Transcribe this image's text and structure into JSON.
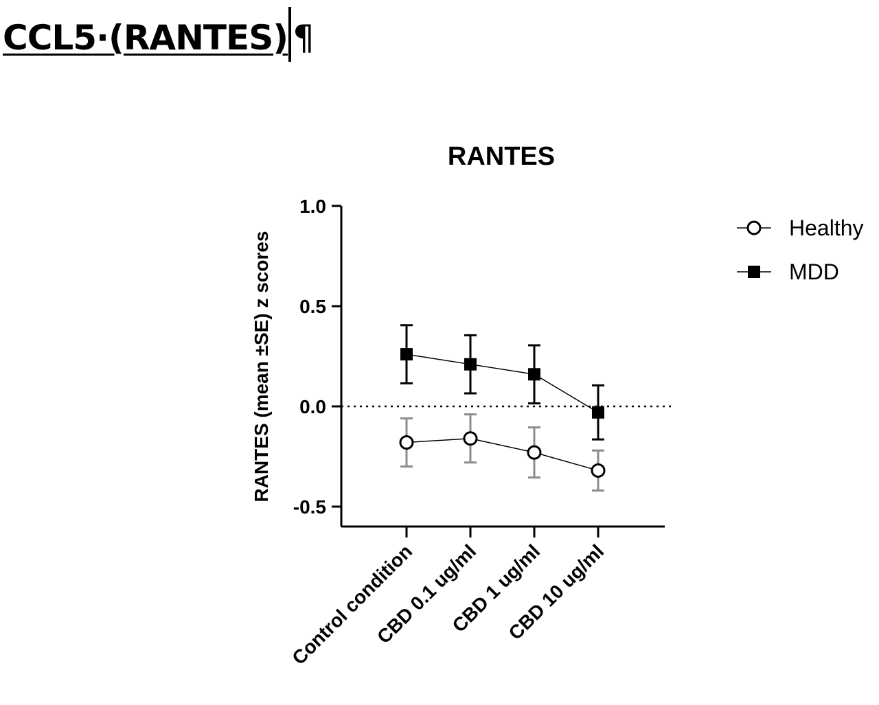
{
  "document": {
    "heading": "CCL5·(RANTES)",
    "pilcrow": "¶"
  },
  "chart_data": {
    "type": "line",
    "title": "RANTES",
    "ylabel": "RANTES (mean ±SE) z scores",
    "xlabel": "",
    "categories": [
      "Control condition",
      "CBD 0.1 ug/ml",
      "CBD 1 ug/ml",
      "CBD 10 ug/ml"
    ],
    "ylim": [
      -0.6,
      1.0
    ],
    "yticks": [
      1.0,
      0.5,
      0.0,
      -0.5
    ],
    "ytick_labels": [
      "1.0",
      "0.5",
      "0.0",
      "-0.5"
    ],
    "reference_line": 0.0,
    "grid": false,
    "legend_position": "right",
    "series": [
      {
        "name": "Healthy",
        "marker": "open-circle",
        "line_color": "#000000",
        "error_color": "#8c8c8c",
        "values": [
          -0.18,
          -0.16,
          -0.23,
          -0.32
        ],
        "se": [
          0.12,
          0.12,
          0.125,
          0.1
        ]
      },
      {
        "name": "MDD",
        "marker": "filled-square",
        "line_color": "#000000",
        "error_color": "#000000",
        "values": [
          0.26,
          0.21,
          0.16,
          -0.03
        ],
        "se": [
          0.145,
          0.145,
          0.145,
          0.135
        ]
      }
    ]
  }
}
